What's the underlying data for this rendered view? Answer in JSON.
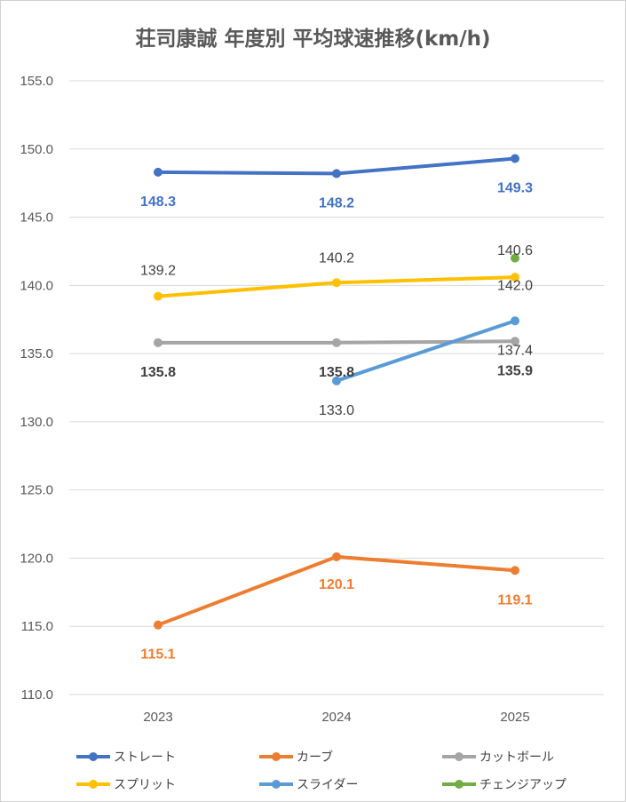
{
  "chart_data": {
    "type": "line",
    "title": "荘司康誠 年度別 平均球速推移(km/h)",
    "categories": [
      "2023",
      "2024",
      "2025"
    ],
    "ylim": [
      110,
      155
    ],
    "yticks": [
      "110.0",
      "115.0",
      "120.0",
      "125.0",
      "130.0",
      "135.0",
      "140.0",
      "145.0",
      "150.0",
      "155.0"
    ],
    "grid": true,
    "legend_position": "bottom",
    "series": [
      {
        "name": "ストレート",
        "color": "#4472C4",
        "values": [
          148.3,
          148.2,
          149.3
        ],
        "labels": [
          "148.3",
          "148.2",
          "149.3"
        ],
        "label_color": "#4472C4",
        "label_bold": true
      },
      {
        "name": "カーブ",
        "color": "#ED7D31",
        "values": [
          115.1,
          120.1,
          119.1
        ],
        "labels": [
          "115.1",
          "120.1",
          "119.1"
        ],
        "label_color": "#ED7D31",
        "label_bold": true
      },
      {
        "name": "カットボール",
        "color": "#A5A5A5",
        "values": [
          135.8,
          135.8,
          135.9
        ],
        "labels": [
          "135.8",
          "135.8",
          "135.9"
        ],
        "label_color": "#404040",
        "label_bold": true
      },
      {
        "name": "スプリット",
        "color": "#FFC000",
        "values": [
          139.2,
          140.2,
          140.6
        ],
        "labels": [
          "139.2",
          "140.2",
          "140.6"
        ],
        "label_color": "#404040",
        "label_bold": false
      },
      {
        "name": "スライダー",
        "color": "#5B9BD5",
        "values": [
          null,
          133.0,
          137.4
        ],
        "labels": [
          null,
          "133.0",
          "137.4"
        ],
        "label_color": "#404040",
        "label_bold": false
      },
      {
        "name": "チェンジアップ",
        "color": "#70AD47",
        "values": [
          null,
          null,
          142.0
        ],
        "labels": [
          null,
          null,
          "142.0"
        ],
        "label_color": "#404040",
        "label_bold": false
      }
    ]
  }
}
